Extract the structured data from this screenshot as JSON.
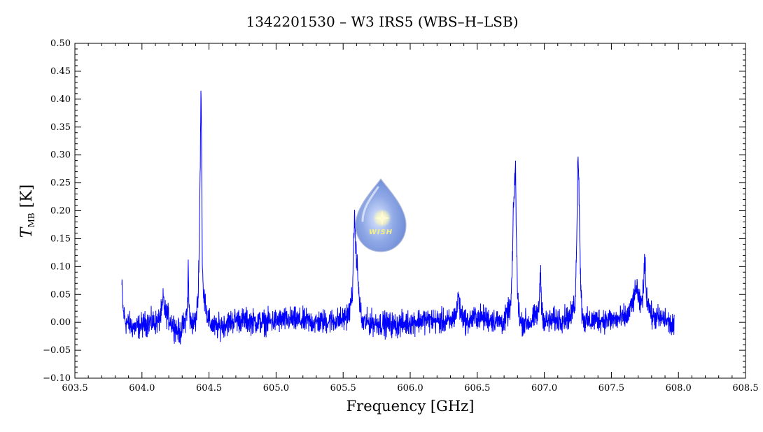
{
  "chart_data": {
    "type": "line",
    "title": "1342201530 – W3 IRS5 (WBS–H–LSB)",
    "xlabel": "Frequency [GHz]",
    "ylabel_main": "T",
    "ylabel_sub": "MB",
    "ylabel_unit": " [K]",
    "xlim": [
      603.5,
      608.5
    ],
    "ylim": [
      -0.1,
      0.5
    ],
    "x_ticks": [
      "603.5",
      "604.0",
      "604.5",
      "605.0",
      "605.5",
      "606.0",
      "606.5",
      "607.0",
      "607.5",
      "608.0",
      "608.5"
    ],
    "y_ticks": [
      "−0.10",
      "−0.05",
      "0.00",
      "0.05",
      "0.10",
      "0.15",
      "0.20",
      "0.25",
      "0.30",
      "0.35",
      "0.40",
      "0.45",
      "0.50"
    ],
    "grid": false,
    "series": [
      {
        "color": "#0000ff",
        "x": [
          603.85,
          603.86,
          603.88,
          603.95,
          604.05,
          604.12,
          604.15,
          604.16,
          604.17,
          604.22,
          604.28,
          604.32,
          604.34,
          604.345,
          604.35,
          604.36,
          604.4,
          604.42,
          604.43,
          604.435,
          604.44,
          604.445,
          604.45,
          604.46,
          604.47,
          604.48,
          604.5,
          604.55,
          604.7,
          604.9,
          605.1,
          605.3,
          605.5,
          605.55,
          605.57,
          605.58,
          605.585,
          605.59,
          605.6,
          605.61,
          605.62,
          605.64,
          605.7,
          605.9,
          606.1,
          606.3,
          606.35,
          606.36,
          606.37,
          606.42,
          606.5,
          606.6,
          606.7,
          606.75,
          606.76,
          606.77,
          606.78,
          606.785,
          606.79,
          606.8,
          606.82,
          606.9,
          606.96,
          606.97,
          606.98,
          607.0,
          607.1,
          607.2,
          607.23,
          607.24,
          607.25,
          607.255,
          607.26,
          607.27,
          607.28,
          607.3,
          607.4,
          607.55,
          607.62,
          607.65,
          607.68,
          607.69,
          607.7,
          607.72,
          607.74,
          607.75,
          607.76,
          607.8,
          607.9,
          607.97
        ],
        "y": [
          0.065,
          0.02,
          0.0,
          -0.01,
          0.0,
          0.0,
          0.02,
          0.045,
          0.02,
          0.0,
          -0.02,
          0.0,
          0.03,
          0.11,
          0.03,
          0.0,
          0.0,
          0.05,
          0.2,
          0.29,
          0.435,
          0.3,
          0.1,
          0.04,
          0.05,
          0.02,
          0.0,
          -0.01,
          0.005,
          0.0,
          0.005,
          0.0,
          0.005,
          0.02,
          0.06,
          0.14,
          0.21,
          0.15,
          0.12,
          0.08,
          0.04,
          0.0,
          0.0,
          -0.005,
          0.005,
          0.0,
          0.02,
          0.06,
          0.02,
          0.0,
          0.01,
          0.005,
          0.0,
          0.03,
          0.09,
          0.2,
          0.26,
          0.29,
          0.18,
          0.05,
          0.0,
          0.0,
          0.02,
          0.1,
          0.03,
          0.0,
          0.005,
          0.01,
          0.04,
          0.12,
          0.31,
          0.28,
          0.22,
          0.08,
          0.02,
          0.0,
          0.005,
          0.005,
          0.01,
          0.03,
          0.05,
          0.07,
          0.04,
          0.03,
          0.06,
          0.12,
          0.05,
          0.01,
          0.005,
          -0.01
        ]
      }
    ]
  }
}
